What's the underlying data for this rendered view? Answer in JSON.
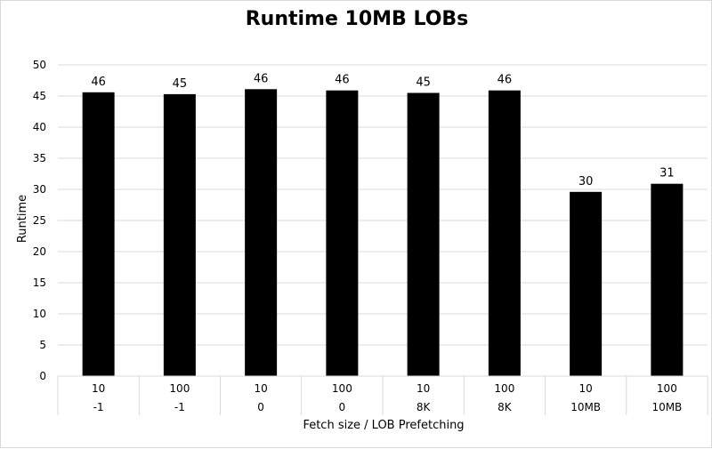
{
  "chart_data": {
    "type": "bar",
    "title": "Runtime 10MB LOBs",
    "xlabel": "Fetch size / LOB Prefetching",
    "ylabel": "Runtime",
    "ylim": [
      0,
      50
    ],
    "yticks": [
      0,
      5,
      10,
      15,
      20,
      25,
      30,
      35,
      40,
      45,
      50
    ],
    "categories": [
      {
        "fetch_size": "10",
        "lob_prefetching": "-1"
      },
      {
        "fetch_size": "100",
        "lob_prefetching": "-1"
      },
      {
        "fetch_size": "10",
        "lob_prefetching": "0"
      },
      {
        "fetch_size": "100",
        "lob_prefetching": "0"
      },
      {
        "fetch_size": "10",
        "lob_prefetching": "8K"
      },
      {
        "fetch_size": "100",
        "lob_prefetching": "8K"
      },
      {
        "fetch_size": "10",
        "lob_prefetching": "10MB"
      },
      {
        "fetch_size": "100",
        "lob_prefetching": "10MB"
      }
    ],
    "values": [
      45.6,
      45.3,
      46.1,
      45.9,
      45.5,
      45.9,
      29.6,
      30.9
    ],
    "data_labels": [
      "46",
      "45",
      "46",
      "46",
      "45",
      "46",
      "30",
      "31"
    ],
    "bar_color": "#000000",
    "grid": true,
    "legend": "none"
  }
}
